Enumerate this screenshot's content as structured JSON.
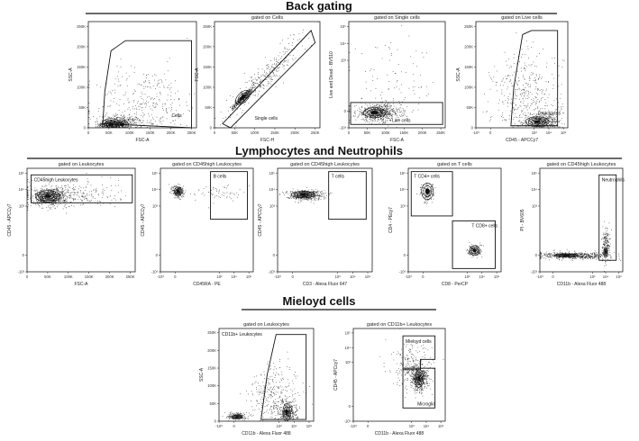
{
  "sections": [
    {
      "title": "Back gating"
    },
    {
      "title": "Lymphocytes and Neutrophils"
    },
    {
      "title": "Mieloyd cells"
    }
  ],
  "chart_data": [
    {
      "type": "scatter",
      "title": "",
      "xlabel": "FSC-A",
      "ylabel": "SSC-A",
      "xscale": "linear",
      "yscale": "linear",
      "xticks": [
        "0",
        "50K",
        "100K",
        "150K",
        "200K",
        "250K"
      ],
      "yticks": [
        "0",
        "50K",
        "100K",
        "150K",
        "200K",
        "250K"
      ],
      "gates": [
        {
          "label": "Cells",
          "shape": "polygon",
          "points": [
            [
              35,
              10
            ],
            [
              40,
              90
            ],
            [
              55,
              190
            ],
            [
              90,
              215
            ],
            [
              250,
              215
            ],
            [
              250,
              0
            ]
          ]
        }
      ],
      "populations": [
        {
          "x": 55,
          "y": 8,
          "sx": 15,
          "sy": 6,
          "n": 420
        },
        {
          "x": 80,
          "y": 12,
          "sx": 25,
          "sy": 10,
          "n": 340
        },
        {
          "x": 140,
          "y": 50,
          "sx": 60,
          "sy": 50,
          "n": 380
        }
      ],
      "contours": [
        {
          "x": 55,
          "y": 8,
          "rx": 22,
          "ry": 15,
          "k": 4
        },
        {
          "x": 82,
          "y": 8,
          "rx": 15,
          "ry": 12,
          "k": 3
        }
      ]
    },
    {
      "type": "scatter",
      "title": "gated on Cells",
      "xlabel": "FSC-H",
      "ylabel": "FSC-A",
      "xscale": "linear",
      "yscale": "linear",
      "xticks": [
        "0",
        "50K",
        "100K",
        "150K",
        "200K",
        "250K"
      ],
      "yticks": [
        "0",
        "50K",
        "100K",
        "150K",
        "200K",
        "250K"
      ],
      "gates": [
        {
          "label": "Single cells",
          "shape": "polygon",
          "points": [
            [
              20,
              10
            ],
            [
              40,
              0
            ],
            [
              250,
              210
            ],
            [
              240,
              240
            ]
          ]
        }
      ],
      "populations": [
        {
          "x": 70,
          "y": 75,
          "sx": 12,
          "sy": 12,
          "n": 420,
          "diag": true
        },
        {
          "x": 130,
          "y": 130,
          "sx": 50,
          "sy": 50,
          "n": 300,
          "diag": true
        }
      ],
      "contours": [
        {
          "x": 70,
          "y": 75,
          "rx": 22,
          "ry": 12,
          "k": 3,
          "rot": -45
        }
      ]
    },
    {
      "type": "scatter",
      "title": "gated on Single cells",
      "xlabel": "FSC-A",
      "ylabel": "Live and Dead - BV510",
      "xscale": "linear",
      "yscale": "log",
      "xticks": [
        "0",
        "50K",
        "100K",
        "150K",
        "200K",
        "250K"
      ],
      "yticks": [
        "-10³",
        "0",
        "10³",
        "10⁴",
        "10⁵"
      ],
      "gates": [
        {
          "label": "Live cells",
          "shape": "rect",
          "points": [
            [
              5,
              -0.8
            ],
            [
              255,
              0.5
            ]
          ]
        }
      ],
      "populations": [
        {
          "x": 80,
          "y": -0.1,
          "sx": 30,
          "sy": 0.25,
          "n": 700
        },
        {
          "x": 120,
          "y": 1.5,
          "sx": 60,
          "sy": 1.2,
          "n": 100
        }
      ],
      "contours": [
        {
          "x": 70,
          "y": -0.1,
          "rx": 30,
          "ry": 0.3,
          "k": 3
        }
      ]
    },
    {
      "type": "scatter",
      "title": "gated on Live cells",
      "xlabel": "CD45 - APCCy7",
      "ylabel": "SSC-A",
      "xscale": "log",
      "yscale": "linear",
      "xticks": [
        "-10³",
        "0",
        "10³",
        "10⁴",
        "10⁵"
      ],
      "yticks": [
        "0",
        "50K",
        "100K",
        "150K",
        "200K",
        "250K"
      ],
      "gates": [
        {
          "label": "Leukocytes",
          "shape": "polygon",
          "points": [
            [
              1.4,
              5
            ],
            [
              1.6,
              100
            ],
            [
              2.2,
              230
            ],
            [
              2.8,
              240
            ],
            [
              4.6,
              240
            ],
            [
              4.6,
              5
            ]
          ]
        }
      ],
      "populations": [
        {
          "x": 3.5,
          "y": 15,
          "sx": 0.6,
          "sy": 10,
          "n": 450
        },
        {
          "x": 2.5,
          "y": 70,
          "sx": 1.2,
          "sy": 60,
          "n": 450
        }
      ],
      "contours": [
        {
          "x": 3.2,
          "y": 15,
          "rx": 0.8,
          "ry": 12,
          "k": 4
        }
      ]
    },
    {
      "type": "scatter",
      "title": "gated on Leukocytes",
      "xlabel": "FSC-A",
      "ylabel": "CD45 - APCCy7",
      "xscale": "linear",
      "yscale": "log",
      "xticks": [
        "0",
        "50K",
        "100K",
        "150K",
        "200K",
        "250K"
      ],
      "yticks": [
        "-10³",
        "0",
        "10³",
        "10⁴",
        "10⁵"
      ],
      "gates": [
        {
          "label": "CD45high Leukocytes",
          "shape": "rect",
          "points": [
            [
              10,
              3.2
            ],
            [
              255,
              4.9
            ]
          ]
        }
      ],
      "populations": [
        {
          "x": 55,
          "y": 3.6,
          "sx": 20,
          "sy": 0.25,
          "n": 650
        },
        {
          "x": 100,
          "y": 3.7,
          "sx": 60,
          "sy": 0.4,
          "n": 300
        }
      ],
      "contours": [
        {
          "x": 50,
          "y": 3.6,
          "rx": 30,
          "ry": 0.35,
          "k": 4
        }
      ]
    },
    {
      "type": "scatter",
      "title": "gated on CD45high Leukocytes",
      "xlabel": "CD45RA - PE",
      "ylabel": "CD45 - APCCy7",
      "xscale": "log",
      "yscale": "log",
      "xticks": [
        "-10³",
        "0",
        "10³",
        "10⁴",
        "10⁵"
      ],
      "yticks": [
        "-10³",
        "0",
        "10³",
        "10⁴",
        "10⁵"
      ],
      "gates": [
        {
          "label": "B cells",
          "shape": "rect",
          "points": [
            [
              2.4,
              2.2
            ],
            [
              4.9,
              5.1
            ]
          ]
        }
      ],
      "populations": [
        {
          "x": 0.2,
          "y": 3.9,
          "sx": 0.2,
          "sy": 0.2,
          "n": 250
        },
        {
          "x": 2.8,
          "y": 3.8,
          "sx": 0.8,
          "sy": 0.25,
          "n": 60
        }
      ],
      "contours": [
        {
          "x": 0.2,
          "y": 3.9,
          "rx": 0.25,
          "ry": 0.25,
          "k": 3
        }
      ]
    },
    {
      "type": "scatter",
      "title": "gated on CD45high Leukocytes",
      "xlabel": "CD3 - Alexa Fluor 647",
      "ylabel": "CD45 - APCCy7",
      "xscale": "log",
      "yscale": "log",
      "xticks": [
        "-10³",
        "0",
        "10³",
        "10⁴",
        "10⁵"
      ],
      "yticks": [
        "-10³",
        "0",
        "10³",
        "10⁴",
        "10⁵"
      ],
      "gates": [
        {
          "label": "T cells",
          "shape": "rect",
          "points": [
            [
              2.4,
              2.2
            ],
            [
              4.9,
              5.1
            ]
          ]
        }
      ],
      "populations": [
        {
          "x": 0.8,
          "y": 3.7,
          "sx": 0.6,
          "sy": 0.15,
          "n": 500
        }
      ],
      "contours": [
        {
          "x": 0.7,
          "y": 3.7,
          "rx": 0.8,
          "ry": 0.2,
          "k": 4
        }
      ]
    },
    {
      "type": "scatter",
      "title": "gated on T cells",
      "xlabel": "CD8 - PerCP",
      "ylabel": "CD4 - PEcy7",
      "xscale": "log",
      "yscale": "log",
      "xticks": [
        "-10³",
        "0",
        "10³",
        "10⁴",
        "10⁵"
      ],
      "yticks": [
        "-10³",
        "0",
        "10³",
        "10⁴",
        "10⁵"
      ],
      "gates": [
        {
          "label": "T CD4+ cells",
          "shape": "rect",
          "points": [
            [
              -0.8,
              2.4
            ],
            [
              2.0,
              5.1
            ]
          ]
        },
        {
          "label": "T CD8+ cells",
          "shape": "rect",
          "points": [
            [
              2.0,
              -0.8
            ],
            [
              4.9,
              2.1
            ]
          ]
        }
      ],
      "populations": [
        {
          "x": 0.3,
          "y": 3.8,
          "sx": 0.25,
          "sy": 0.3,
          "n": 150
        },
        {
          "x": 3.5,
          "y": 0.3,
          "sx": 0.25,
          "sy": 0.2,
          "n": 150
        }
      ],
      "contours": [
        {
          "x": 0.3,
          "y": 3.9,
          "rx": 0.4,
          "ry": 0.5,
          "k": 3
        },
        {
          "x": 3.5,
          "y": 0.3,
          "rx": 0.35,
          "ry": 0.3,
          "k": 3
        }
      ]
    },
    {
      "type": "scatter",
      "title": "gated on CD45high Leukocytes",
      "xlabel": "CD11b - Alexa Fluor 488",
      "ylabel": "PI - BV605",
      "xscale": "log",
      "yscale": "log",
      "xticks": [
        "-10³",
        "0",
        "10³",
        "10⁴",
        "10⁵"
      ],
      "yticks": [
        "-10³",
        "0",
        "10³",
        "10⁴",
        "10⁵"
      ],
      "gates": [
        {
          "label": "Neutrophils",
          "shape": "rect",
          "points": [
            [
              3.5,
              -0.3
            ],
            [
              4.8,
              4.9
            ]
          ]
        }
      ],
      "populations": [
        {
          "x": 1.6,
          "y": 0,
          "sx": 1.3,
          "sy": 0.1,
          "n": 600
        },
        {
          "x": 4.0,
          "y": 0.6,
          "sx": 0.15,
          "sy": 0.5,
          "n": 200
        }
      ],
      "contours": [
        {
          "x": 1.0,
          "y": 0,
          "rx": 0.9,
          "ry": 0.1,
          "k": 3
        },
        {
          "x": 4.0,
          "y": 0.2,
          "rx": 0.15,
          "ry": 0.3,
          "k": 3
        }
      ]
    },
    {
      "type": "scatter",
      "title": "gated on Leukocytes",
      "xlabel": "CD11b - Alexa Fluor 488",
      "ylabel": "SSC-A",
      "xscale": "log",
      "yscale": "linear",
      "xticks": [
        "-10³",
        "0",
        "10³",
        "10⁴",
        "10⁵"
      ],
      "yticks": [
        "0",
        "50K",
        "100K",
        "150K",
        "200K",
        "250K"
      ],
      "gates": [
        {
          "label": "CD11b+ Leukocytes",
          "shape": "polygon",
          "points": [
            [
              1.8,
              5
            ],
            [
              2.2,
              130
            ],
            [
              2.8,
              245
            ],
            [
              4.8,
              245
            ],
            [
              4.8,
              5
            ]
          ]
        }
      ],
      "populations": [
        {
          "x": 0.2,
          "y": 15,
          "sx": 0.3,
          "sy": 5,
          "n": 200
        },
        {
          "x": 3.6,
          "y": 25,
          "sx": 0.3,
          "sy": 15,
          "n": 300
        },
        {
          "x": 2.8,
          "y": 60,
          "sx": 0.9,
          "sy": 50,
          "n": 400
        }
      ],
      "contours": [
        {
          "x": 0.2,
          "y": 12,
          "rx": 0.35,
          "ry": 6,
          "k": 3
        },
        {
          "x": 3.5,
          "y": 25,
          "rx": 0.25,
          "ry": 25,
          "k": 3
        }
      ]
    },
    {
      "type": "scatter",
      "title": "gated on CD11b+ Leukocytes",
      "xlabel": "CD11b - Alexa Fluor 488",
      "ylabel": "CD45 - APCcy7",
      "xscale": "log",
      "yscale": "log",
      "xticks": [
        "-10³",
        "0",
        "10³",
        "10⁴",
        "10⁵"
      ],
      "yticks": [
        "-10³",
        "0",
        "10³",
        "10⁴",
        "10⁵"
      ],
      "gates": [
        {
          "label": "Mieloyd cells",
          "shape": "polygon",
          "points": [
            [
              2.4,
              2.5
            ],
            [
              2.4,
              4.8
            ],
            [
              4.6,
              4.8
            ],
            [
              4.6,
              3.2
            ],
            [
              3.6,
              3.2
            ],
            [
              3.6,
              2.5
            ]
          ]
        },
        {
          "label": "Microglia",
          "shape": "rect",
          "points": [
            [
              2.4,
              -0.1
            ],
            [
              4.6,
              2.6
            ]
          ]
        }
      ],
      "populations": [
        {
          "x": 3.5,
          "y": 1.9,
          "sx": 0.3,
          "sy": 0.4,
          "n": 450
        },
        {
          "x": 3.0,
          "y": 2.6,
          "sx": 0.7,
          "sy": 0.8,
          "n": 250
        }
      ],
      "contours": [
        {
          "x": 3.5,
          "y": 1.9,
          "rx": 0.3,
          "ry": 0.6,
          "k": 4
        }
      ]
    }
  ]
}
